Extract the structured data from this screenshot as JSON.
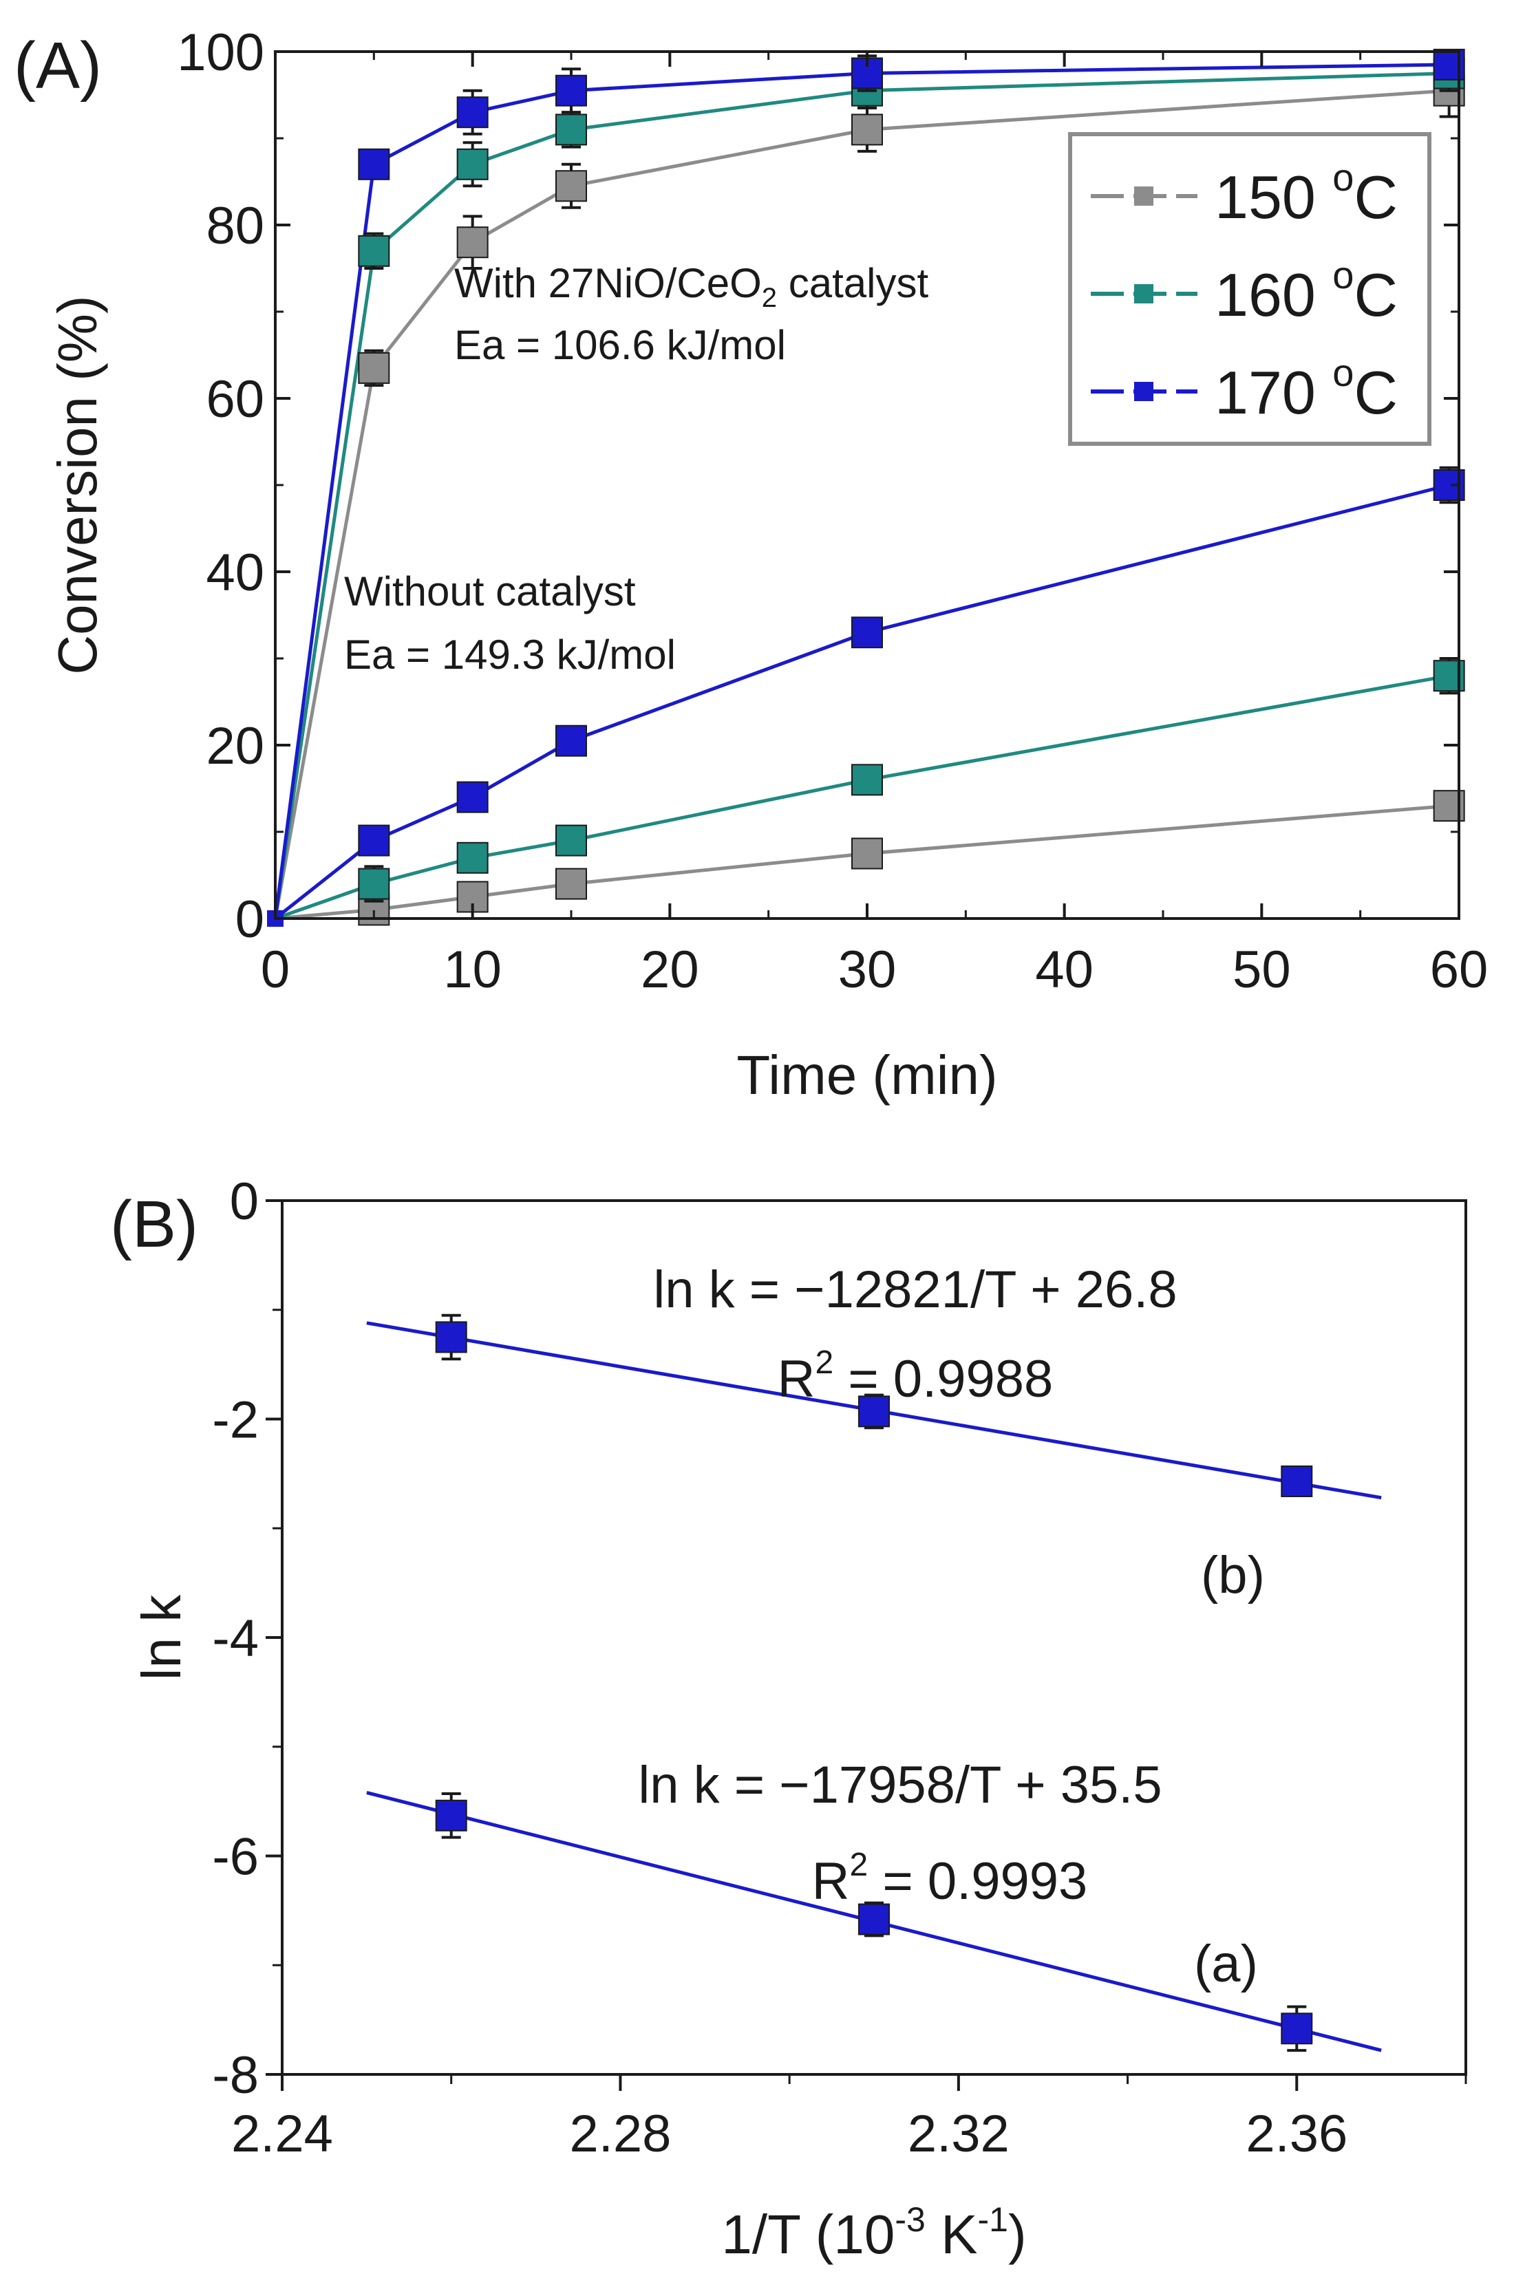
{
  "chart_data": [
    {
      "panel_label": "(A)",
      "type": "line",
      "xlabel": "Time (min)",
      "ylabel": "Conversion (%)",
      "xlim": [
        0,
        60
      ],
      "ylim": [
        0,
        100
      ],
      "xticks": [
        0,
        10,
        20,
        30,
        40,
        50,
        60
      ],
      "yticks": [
        0,
        20,
        40,
        60,
        80,
        100
      ],
      "legend": {
        "placement": "top-right",
        "entries": [
          {
            "label": "150 ",
            "sup": "o",
            "tail": "C",
            "color": "#8c8c8c"
          },
          {
            "label": "160 ",
            "sup": "o",
            "tail": "C",
            "color": "#1f8a80"
          },
          {
            "label": "170 ",
            "sup": "o",
            "tail": "C",
            "color": "#1a1acc"
          }
        ]
      },
      "annotations": {
        "with_catalyst_prefix": "With 27NiO/CeO",
        "with_catalyst_sub": "2",
        "with_catalyst_suffix": " catalyst",
        "with_catalyst_ea": "Ea = 106.6 kJ/mol",
        "without_catalyst": "Without catalyst",
        "without_catalyst_ea": "Ea = 149.3 kJ/mol"
      },
      "x": [
        0,
        5,
        10,
        15,
        30,
        59.5
      ],
      "series": [
        {
          "group": "with_catalyst",
          "temperature": "150",
          "color": "#8c8c8c",
          "values": [
            0,
            63.5,
            78,
            84.5,
            91,
            95.5
          ],
          "errors": [
            0,
            2,
            3,
            2.5,
            2.5,
            3
          ]
        },
        {
          "group": "with_catalyst",
          "temperature": "160",
          "color": "#1f8a80",
          "values": [
            0,
            77,
            87,
            91,
            95.5,
            97.5
          ],
          "errors": [
            0,
            2,
            2.5,
            2,
            2,
            2
          ]
        },
        {
          "group": "with_catalyst",
          "temperature": "170",
          "color": "#1a1acc",
          "values": [
            0,
            87,
            93,
            95.5,
            97.5,
            98.5
          ],
          "errors": [
            0,
            1.5,
            2.5,
            2.5,
            2,
            1.5
          ]
        },
        {
          "group": "without_catalyst",
          "temperature": "150",
          "color": "#8c8c8c",
          "values": [
            0,
            1,
            2.5,
            4,
            7.5,
            13
          ],
          "errors": [
            0,
            1.5,
            1.5,
            1.5,
            1.5,
            1.5
          ]
        },
        {
          "group": "without_catalyst",
          "temperature": "160",
          "color": "#1f8a80",
          "values": [
            0,
            4,
            7,
            9,
            16,
            28
          ],
          "errors": [
            0,
            2,
            1.5,
            1.5,
            1.5,
            2
          ]
        },
        {
          "group": "without_catalyst",
          "temperature": "170",
          "color": "#1a1acc",
          "values": [
            0,
            9,
            14,
            20.5,
            33,
            50
          ],
          "errors": [
            0,
            1.5,
            1.5,
            1.5,
            1.5,
            2
          ]
        }
      ]
    },
    {
      "panel_label": "(B)",
      "type": "scatter",
      "xlabel_prefix": "1/T (10",
      "xlabel_sup": "-3",
      "xlabel_suffix": " K",
      "xlabel_sup2": "-1",
      "xlabel_end": ")",
      "ylabel": "ln k",
      "xlim": [
        2.24,
        2.38
      ],
      "ylim": [
        -8,
        0
      ],
      "xticks": [
        2.24,
        2.28,
        2.32,
        2.36
      ],
      "yticks": [
        0,
        -2,
        -4,
        -6,
        -8
      ],
      "series": [
        {
          "name": "(b)",
          "color": "#1a1acc",
          "x": [
            2.26,
            2.31,
            2.36
          ],
          "values": [
            -1.25,
            -1.93,
            -2.57
          ],
          "errors": [
            0.2,
            0.15,
            0.12
          ],
          "fit_x": [
            2.25,
            2.37
          ],
          "fit_y": [
            -1.12,
            -2.72
          ],
          "equation": "ln k = −12821/T + 26.8",
          "r2_prefix": "R",
          "r2_sup": "2",
          "r2_value": " = 0.9988"
        },
        {
          "name": "(a)",
          "color": "#1a1acc",
          "x": [
            2.26,
            2.31,
            2.36
          ],
          "values": [
            -5.63,
            -6.58,
            -7.58
          ],
          "errors": [
            0.2,
            0.15,
            0.2
          ],
          "fit_x": [
            2.25,
            2.37
          ],
          "fit_y": [
            -5.42,
            -7.78
          ],
          "equation": "ln k = −17958/T + 35.5",
          "r2_prefix": "R",
          "r2_sup": "2",
          "r2_value": " = 0.9993"
        }
      ]
    }
  ]
}
